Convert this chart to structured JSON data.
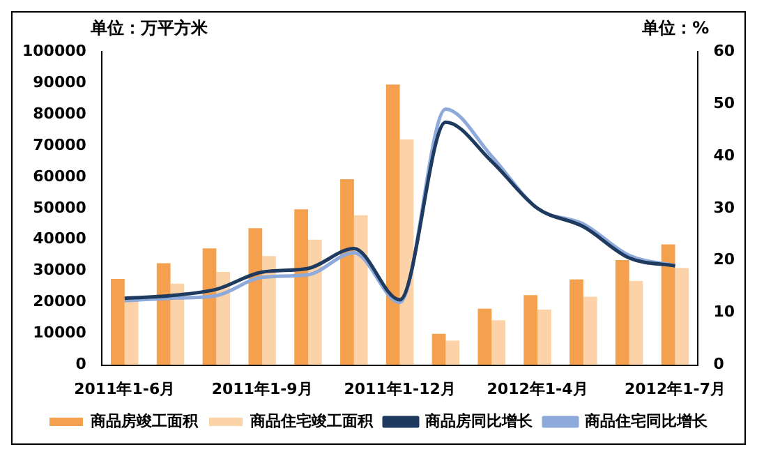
{
  "chart_data": {
    "type": "bar",
    "ylabel": "单位：万平方米",
    "y2label": "单位：%",
    "categories": [
      "2011年1-6月",
      null,
      null,
      "2011年1-9月",
      null,
      null,
      "2011年1-12月",
      null,
      null,
      "2012年1-4月",
      null,
      null,
      "2012年1-7月"
    ],
    "series": [
      {
        "name": "商品房竣工面积",
        "color": "#f4a04e",
        "values": [
          27500,
          32500,
          37200,
          43700,
          49700,
          59300,
          89500,
          10000,
          18000,
          22300,
          27300,
          33500,
          38500
        ]
      },
      {
        "name": "商品住宅竣工面积",
        "color": "#fcd3a8",
        "values": [
          21500,
          26000,
          29700,
          34800,
          40000,
          47800,
          72000,
          7800,
          14300,
          17700,
          21800,
          26800,
          31000
        ]
      },
      {
        "name": "商品房同比增长",
        "type": "line",
        "axis": "y2",
        "color": "#1f3a5f",
        "values": [
          12.8,
          13.3,
          14.5,
          17.8,
          18.5,
          22.3,
          12.5,
          46.5,
          39,
          30,
          26.5,
          20.5,
          19
        ]
      },
      {
        "name": "商品住宅同比增长",
        "type": "line",
        "axis": "y2",
        "color": "#8eaadb",
        "values": [
          12.3,
          12.8,
          13.3,
          16.8,
          17.3,
          21.5,
          12,
          49,
          40,
          30,
          27,
          21,
          19
        ]
      }
    ],
    "ylim": [
      0,
      100000
    ],
    "yticks": [
      0,
      10000,
      20000,
      30000,
      40000,
      50000,
      60000,
      70000,
      80000,
      90000,
      100000
    ],
    "y2lim": [
      0,
      60
    ],
    "y2ticks": [
      0,
      10,
      20,
      30,
      40,
      50,
      60
    ],
    "grid": false,
    "legend": "bottom",
    "marker": "none"
  }
}
